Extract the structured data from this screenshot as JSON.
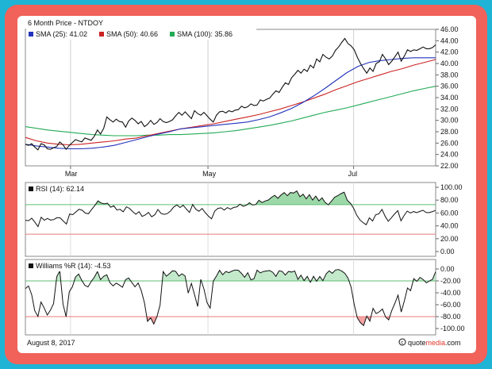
{
  "footer": {
    "date": "August 8, 2017",
    "brand_prefix": "quote",
    "brand_suffix": "media",
    "brand_tld": ".com"
  },
  "colors": {
    "price": "#111111",
    "sma25": "#2233bb",
    "sma50": "#cc2222",
    "sma100": "#22aa55",
    "rsi_band": "#9dd8a8",
    "will_band": "#c3e9cb",
    "oversold": "#e87b7b"
  },
  "chart_data": [
    {
      "type": "line",
      "title": "6 Month Price - NTDOY",
      "x_labels": [
        {
          "label": "Mar",
          "at": 0.11
        },
        {
          "label": "May",
          "at": 0.445
        },
        {
          "label": "Jul",
          "at": 0.8
        }
      ],
      "ylim": [
        22,
        46
      ],
      "yticks": [
        "46.00",
        "44.00",
        "42.00",
        "40.00",
        "38.00",
        "36.00",
        "34.00",
        "32.00",
        "30.00",
        "28.00",
        "26.00",
        "24.00",
        "22.00"
      ],
      "series": [
        {
          "name": "Price",
          "color": "#111111",
          "values": [
            25.8,
            25.6,
            25.9,
            25.3,
            24.8,
            25.9,
            25.7,
            25.0,
            24.9,
            25.2,
            25.4,
            26.2,
            25.7,
            24.9,
            25.6,
            26.1,
            26.6,
            26.4,
            26.2,
            26.9,
            26.7,
            26.5,
            27.2,
            28.3,
            27.6,
            28.6,
            30.6,
            30.1,
            29.7,
            30.2,
            29.8,
            29.7,
            28.8,
            29.9,
            30.4,
            30.0,
            29.4,
            29.8,
            28.9,
            29.3,
            30.0,
            29.3,
            29.6,
            30.3,
            29.8,
            29.6,
            29.8,
            30.1,
            30.8,
            31.4,
            30.9,
            31.5,
            30.9,
            30.3,
            31.7,
            31.2,
            30.9,
            31.4,
            30.8,
            30.2,
            29.7,
            30.9,
            31.5,
            31.6,
            31.3,
            31.7,
            31.5,
            31.8,
            31.9,
            32.5,
            32.2,
            32.4,
            32.9,
            32.6,
            32.7,
            33.6,
            33.4,
            33.7,
            33.9,
            34.6,
            35.2,
            34.9,
            35.8,
            36.6,
            36.3,
            37.5,
            38.1,
            38.8,
            38.3,
            39.0,
            38.6,
            39.7,
            39.2,
            40.8,
            40.3,
            41.6,
            41.1,
            40.8,
            41.3,
            42.3,
            42.9,
            43.7,
            44.4,
            43.5,
            43.1,
            42.4,
            41.1,
            40.0,
            39.1,
            38.3,
            39.2,
            38.6,
            40.0,
            40.3,
            41.6,
            40.8,
            39.8,
            40.4,
            41.2,
            42.0,
            40.4,
            41.3,
            42.4,
            42.1,
            42.4,
            42.3,
            42.6,
            42.9,
            42.6,
            42.6,
            42.8,
            43.3
          ]
        },
        {
          "name": "SMA (25): 41.02",
          "color": "#2233bb",
          "values": [
            25.8,
            25.5,
            25.3,
            25.1,
            25.0,
            25.0,
            25.1,
            25.3,
            25.6,
            26.1,
            26.6,
            27.1,
            27.6,
            28.0,
            28.5,
            28.7,
            28.9,
            29.1,
            29.3,
            29.5,
            29.7,
            30.1,
            30.6,
            31.3,
            32.1,
            33.1,
            34.3,
            35.6,
            37.0,
            38.4,
            39.5,
            40.2,
            40.5,
            40.7,
            40.9,
            41.0,
            41.0,
            41.0
          ]
        },
        {
          "name": "SMA (50): 40.66",
          "color": "#cc2222",
          "values": [
            27.0,
            26.4,
            26.0,
            25.8,
            25.7,
            25.8,
            26.0,
            26.2,
            26.4,
            26.7,
            26.9,
            27.3,
            27.7,
            28.1,
            28.5,
            28.8,
            29.1,
            29.4,
            29.8,
            30.2,
            30.6,
            31.0,
            31.5,
            32.0,
            32.6,
            33.2,
            33.9,
            34.6,
            35.4,
            36.1,
            36.8,
            37.4,
            38.0,
            38.6,
            39.1,
            39.7,
            40.2,
            40.7
          ]
        },
        {
          "name": "SMA (100): 35.86",
          "color": "#22aa55",
          "values": [
            28.9,
            28.6,
            28.3,
            28.1,
            27.9,
            27.7,
            27.5,
            27.4,
            27.3,
            27.3,
            27.3,
            27.4,
            27.4,
            27.5,
            27.5,
            27.6,
            27.7,
            27.8,
            28.0,
            28.2,
            28.5,
            28.8,
            29.1,
            29.5,
            29.9,
            30.4,
            30.9,
            31.4,
            31.8,
            32.2,
            32.7,
            33.2,
            33.7,
            34.2,
            34.7,
            35.2,
            35.6,
            36.0
          ]
        }
      ]
    },
    {
      "type": "line",
      "title": "RSI (14): 62.14",
      "ylim": [
        0,
        100
      ],
      "yticks": [
        "100.00",
        "80.00",
        "60.00",
        "40.00",
        "20.00",
        "0.00"
      ],
      "upper": 70,
      "lower": 30,
      "series": [
        {
          "name": "RSI (14): 62.14",
          "color": "#111111",
          "values": [
            48.8,
            48.3,
            51.7,
            46.3,
            40.3,
            52.9,
            48.9,
            51.3,
            49.1,
            49.8,
            52.4,
            52.1,
            47.8,
            43.8,
            57.3,
            56.4,
            60.1,
            63.8,
            62.4,
            58.5,
            57.7,
            63.6,
            68.9,
            75.2,
            72.3,
            71.1,
            72.0,
            66.6,
            68.4,
            62.8,
            63.7,
            60.3,
            67.1,
            65.0,
            60.6,
            57.0,
            60.5,
            54.1,
            56.1,
            59.5,
            53.5,
            56.3,
            63.4,
            58.0,
            56.9,
            58.0,
            61.4,
            66.8,
            69.7,
            66.1,
            69.2,
            64.1,
            59.5,
            70.2,
            63.8,
            61.1,
            64.8,
            59.1,
            54.4,
            50.7,
            61.3,
            65.0,
            65.7,
            62.6,
            66.0,
            63.9,
            66.2,
            66.9,
            70.7,
            67.9,
            69.1,
            72.6,
            69.5,
            70.2,
            75.9,
            72.9,
            75.0,
            76.3,
            80.0,
            82.7,
            78.6,
            83.0,
            86.3,
            82.2,
            86.5,
            85.7,
            88.6,
            80.8,
            84.2,
            78.0,
            83.6,
            76.2,
            81.6,
            75.1,
            79.3,
            73.0,
            69.8,
            75.0,
            80.1,
            82.3,
            84.9,
            86.9,
            76.0,
            71.9,
            65.2,
            55.6,
            49.2,
            45.7,
            42.8,
            52.1,
            47.8,
            56.2,
            57.5,
            63.6,
            54.1,
            47.5,
            52.4,
            57.5,
            61.8,
            48.1,
            55.3,
            61.3,
            58.7,
            60.6,
            59.1,
            60.9,
            62.4,
            59.2,
            59.3,
            60.6,
            62.1
          ]
        }
      ]
    },
    {
      "type": "line",
      "title": "Williams %R (14): -4.53",
      "ylim": [
        -100,
        0
      ],
      "yticks": [
        "0.00",
        "-20.00",
        "-40.00",
        "-60.00",
        "-80.00",
        "-100.00"
      ],
      "upper": -20,
      "lower": -80,
      "series": [
        {
          "name": "Williams %R (14): -4.53",
          "color": "#111111",
          "values": [
            -32.9,
            -28.4,
            -42.9,
            -70.2,
            -79.4,
            -55.5,
            -65.6,
            -77.3,
            -69.0,
            -58.1,
            -13.1,
            -3.2,
            -58.8,
            -80.1,
            -38.3,
            -29.9,
            -13.6,
            -8.4,
            -18.9,
            -27.5,
            -30.1,
            -21.1,
            -14.0,
            -4.2,
            -17.8,
            -12.3,
            -9.7,
            -23.1,
            -28.4,
            -23.7,
            -26.9,
            -30.7,
            -17.7,
            -15.1,
            -22.8,
            -29.9,
            -23.4,
            -36.3,
            -56.5,
            -87.9,
            -82.1,
            -92.4,
            -79.8,
            -60.7,
            -4.3,
            -12.0,
            -7.9,
            -2.9,
            -4.0,
            -11.8,
            -8.0,
            -11.9,
            -40.5,
            -24.1,
            -42.8,
            -62.9,
            -17.3,
            -33.6,
            -56.4,
            -65.7,
            -20.3,
            -12.0,
            -2.1,
            -9.6,
            -4.1,
            -6.2,
            -3.3,
            -1.7,
            -2.2,
            -7.3,
            -13.9,
            -6.2,
            -18.1,
            -16.3,
            -1.9,
            -6.6,
            -4.1,
            -3.3,
            -2.6,
            -5.6,
            -12.4,
            -2.9,
            -4.2,
            -10.1,
            -4.2,
            -5.1,
            -3.3,
            -17.5,
            -10.4,
            -19.6,
            -12.3,
            -22.4,
            -12.2,
            -20.5,
            -12.5,
            -19.6,
            -8.4,
            -3.0,
            -7.2,
            -1.7,
            -0.8,
            -3.4,
            -7.0,
            -15.1,
            -30.1,
            -59.7,
            -82.2,
            -90.4,
            -95.1,
            -79.0,
            -87.6,
            -66.2,
            -74.9,
            -71.9,
            -67.2,
            -80.6,
            -85.4,
            -69.7,
            -57.3,
            -43.9,
            -72.1,
            -53.9,
            -31.9,
            -36.4,
            -16.2,
            -20.7,
            -14.0,
            -17.6,
            -23.2,
            -20.3,
            -17.2,
            -4.5
          ]
        }
      ]
    }
  ]
}
